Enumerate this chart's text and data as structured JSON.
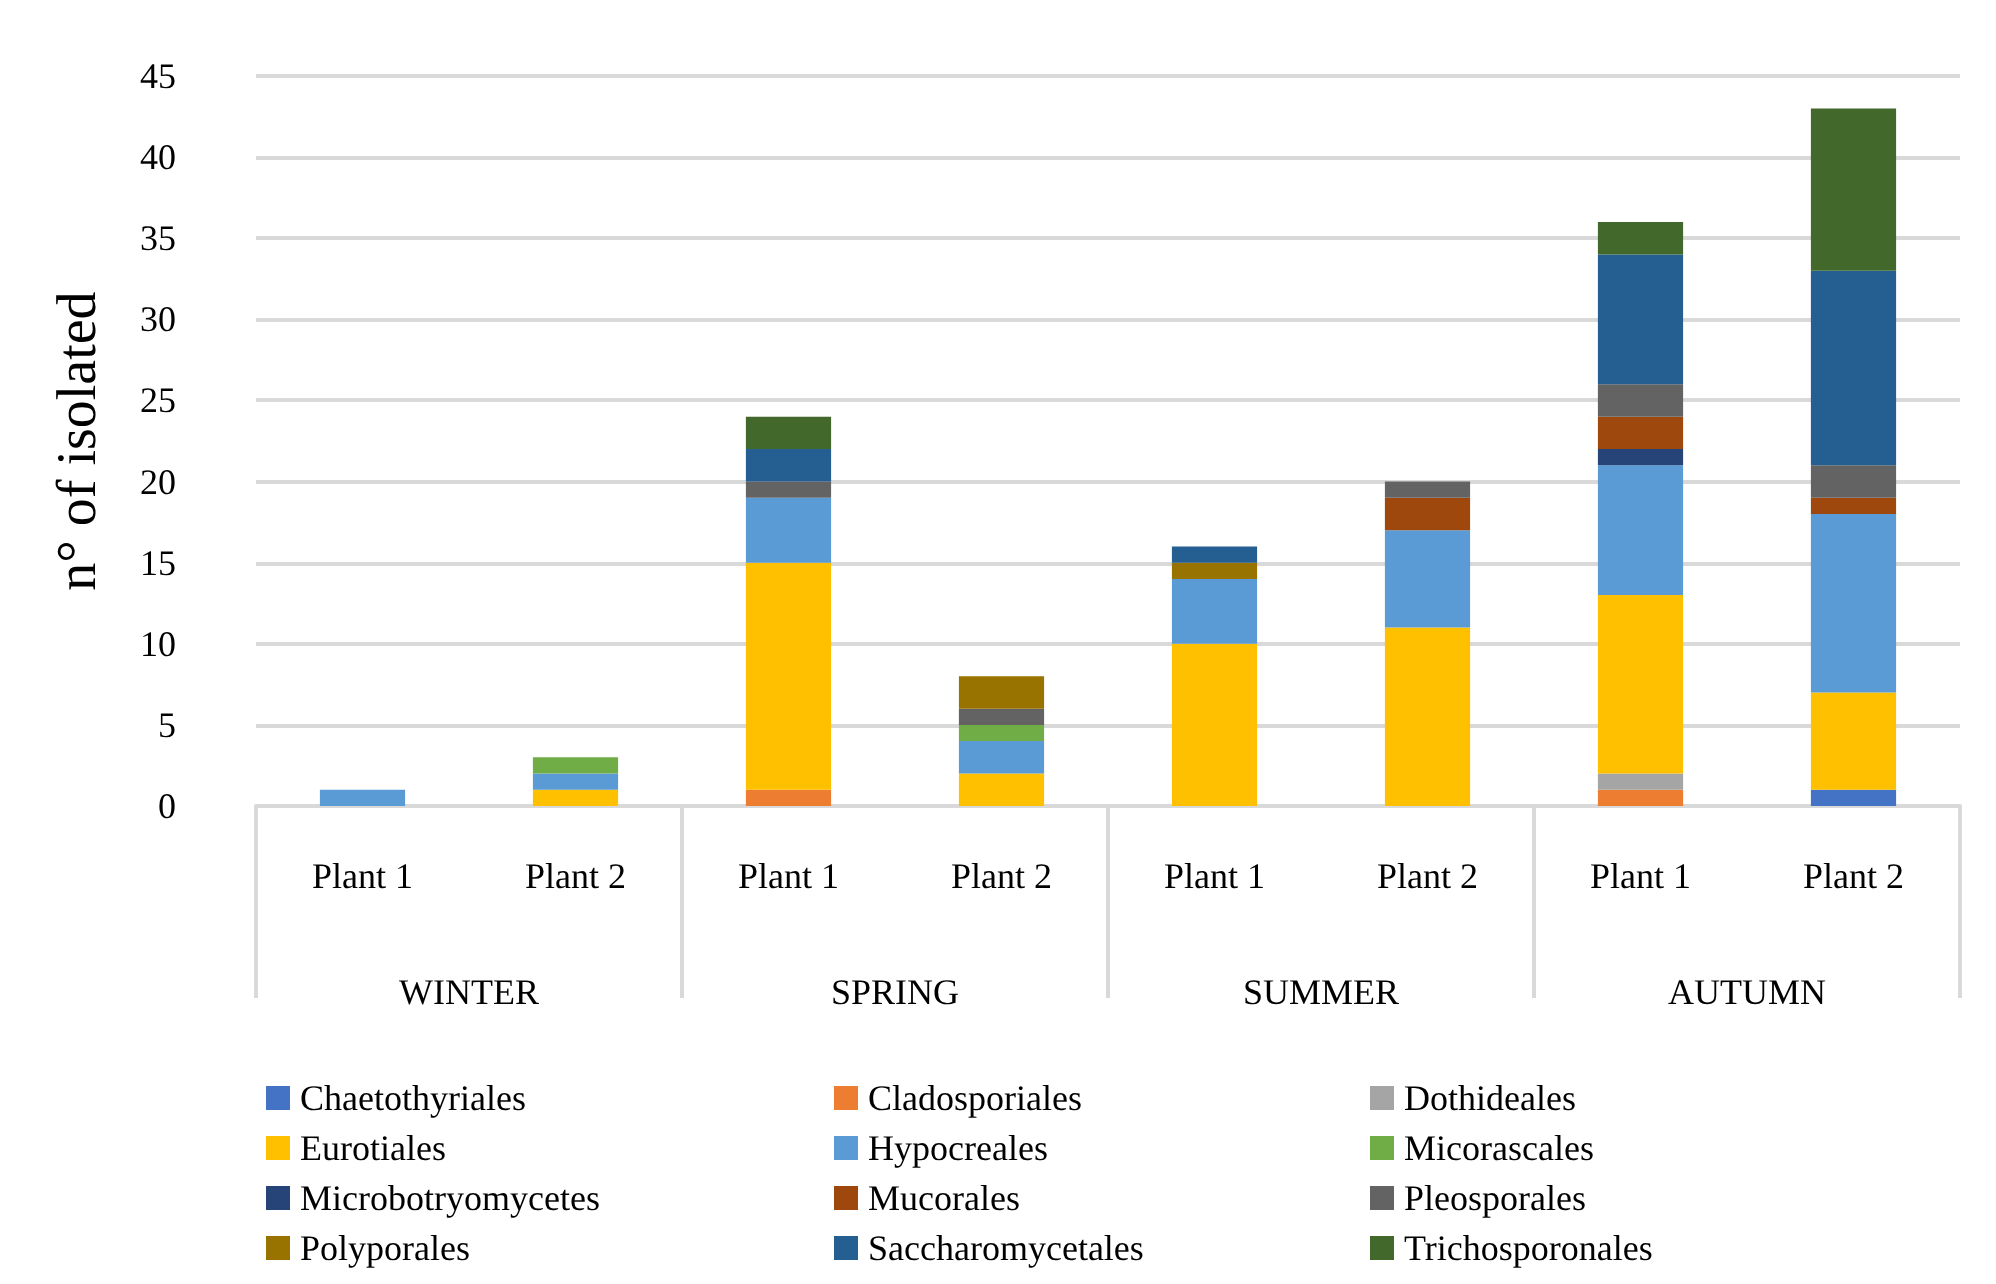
{
  "chart_data": {
    "type": "bar",
    "stacked": true,
    "ylabel": "n° of isolated",
    "categories": [
      "Plant 1",
      "Plant 2",
      "Plant 1",
      "Plant 2",
      "Plant 1",
      "Plant 2",
      "Plant 1",
      "Plant 2"
    ],
    "annotations": [
      "WINTER",
      "SPRING",
      "SUMMER",
      "AUTUMN"
    ],
    "ylim": [
      0,
      45
    ],
    "yticks": [
      0,
      5,
      10,
      15,
      20,
      25,
      30,
      35,
      40,
      45
    ],
    "grid": "y",
    "legend": "bottom",
    "series": [
      {
        "name": "Chaetothyriales",
        "color": "#4472c4",
        "values": [
          null,
          null,
          null,
          null,
          null,
          null,
          null,
          1
        ]
      },
      {
        "name": "Cladosporiales",
        "color": "#ed7d31",
        "values": [
          null,
          null,
          1,
          null,
          null,
          null,
          1,
          null
        ]
      },
      {
        "name": "Dothideales",
        "color": "#a5a5a5",
        "values": [
          null,
          null,
          null,
          null,
          null,
          null,
          1,
          null
        ]
      },
      {
        "name": "Eurotiales",
        "color": "#ffc000",
        "values": [
          null,
          1,
          14,
          2,
          10,
          11,
          11,
          6
        ]
      },
      {
        "name": "Hypocreales",
        "color": "#5b9bd5",
        "values": [
          1,
          1,
          4,
          2,
          4,
          6,
          8,
          11
        ]
      },
      {
        "name": "Micorascales",
        "color": "#70ad47",
        "values": [
          null,
          1,
          null,
          1,
          null,
          null,
          null,
          null
        ]
      },
      {
        "name": "Microbotryomycetes",
        "color": "#264478",
        "values": [
          null,
          null,
          null,
          null,
          null,
          null,
          1,
          null
        ]
      },
      {
        "name": "Mucorales",
        "color": "#9e480e",
        "values": [
          null,
          null,
          null,
          null,
          null,
          2,
          2,
          1
        ]
      },
      {
        "name": "Pleosporales",
        "color": "#636363",
        "values": [
          null,
          null,
          1,
          1,
          null,
          1,
          2,
          2
        ]
      },
      {
        "name": "Polyporales",
        "color": "#997300",
        "values": [
          null,
          null,
          null,
          2,
          1,
          null,
          null,
          null
        ]
      },
      {
        "name": "Saccharomycetales",
        "color": "#255e91",
        "values": [
          null,
          null,
          2,
          null,
          1,
          null,
          8,
          12
        ]
      },
      {
        "name": "Trichosporonales",
        "color": "#43682b",
        "values": [
          null,
          null,
          2,
          null,
          null,
          null,
          2,
          10
        ]
      }
    ]
  }
}
